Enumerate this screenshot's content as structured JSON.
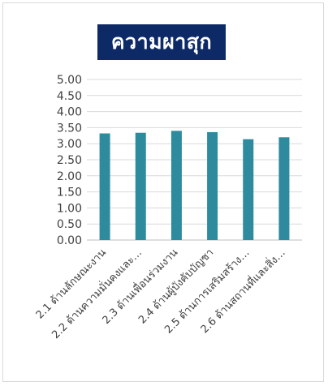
{
  "chart_data": {
    "type": "bar",
    "title": "ความผาสุก",
    "categories": [
      "2.1 ด้านลักษณะงาน",
      "2.2 ด้านความมั่นคงและ…",
      "2.3 ด้านเพื่อนร่วมงาน",
      "2.4 ด้านผู้บังคับบัญชา",
      "2.5 ด้านการเสริมสร้าง…",
      "2.6 ด้านสถานที่และสิ่ง…"
    ],
    "values": [
      3.32,
      3.34,
      3.4,
      3.36,
      3.14,
      3.2
    ],
    "y_ticks": [
      "0.00",
      "0.50",
      "1.00",
      "1.50",
      "2.00",
      "2.50",
      "3.00",
      "3.50",
      "4.00",
      "4.50",
      "5.00"
    ],
    "ylim": [
      0,
      5
    ],
    "grid": true,
    "bar_color": "#2e8b9e",
    "title_bg": "#0d2a66",
    "title_color": "#ffffff"
  }
}
